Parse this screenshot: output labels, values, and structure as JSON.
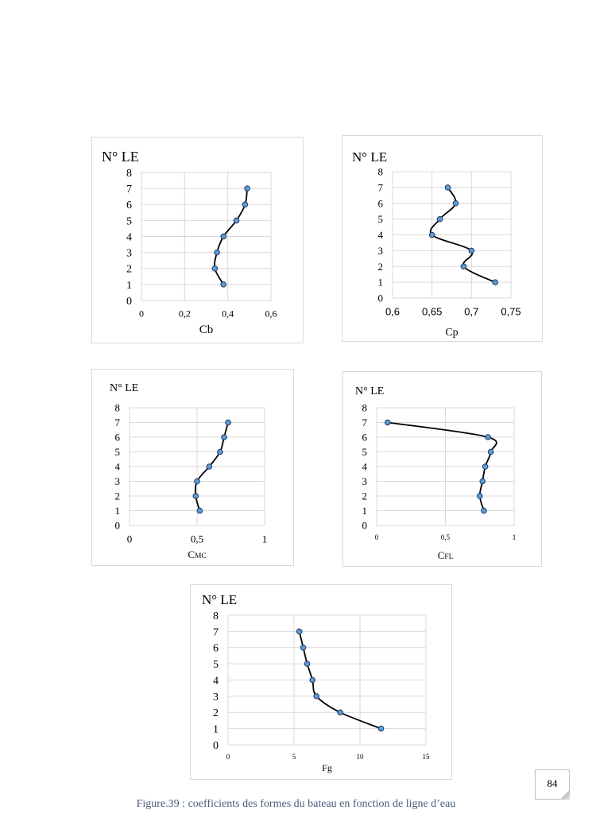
{
  "chart_data": [
    {
      "type": "line",
      "ylabel": "N° LE",
      "xlabel": "Cb",
      "xlim": [
        0,
        0.6
      ],
      "ylim": [
        0,
        8
      ],
      "xticks": [
        "0",
        "0,2",
        "0,4",
        "0,6"
      ],
      "yticks": [
        "0",
        "1",
        "2",
        "3",
        "4",
        "5",
        "6",
        "7",
        "8"
      ],
      "grid": true,
      "series": [
        {
          "x": [
            0.38,
            0.34,
            0.35,
            0.38,
            0.44,
            0.48,
            0.49
          ],
          "y": [
            1,
            2,
            3,
            4,
            5,
            6,
            7
          ]
        }
      ]
    },
    {
      "type": "line",
      "ylabel": "N° LE",
      "xlabel": "Cp",
      "xlim": [
        0.6,
        0.75
      ],
      "ylim": [
        0,
        8
      ],
      "xticks": [
        "0,6",
        "0,65",
        "0,7",
        "0,75"
      ],
      "yticks": [
        "0",
        "1",
        "2",
        "3",
        "4",
        "5",
        "6",
        "7",
        "8"
      ],
      "grid": true,
      "series": [
        {
          "x": [
            0.73,
            0.69,
            0.7,
            0.65,
            0.66,
            0.68,
            0.67
          ],
          "y": [
            1,
            2,
            3,
            4,
            5,
            6,
            7
          ]
        }
      ]
    },
    {
      "type": "line",
      "ylabel": "N° LE",
      "xlabel": "CMC",
      "xlim": [
        0,
        1
      ],
      "ylim": [
        0,
        8
      ],
      "xticks": [
        "0",
        "0,5",
        "1"
      ],
      "yticks": [
        "0",
        "1",
        "2",
        "3",
        "4",
        "5",
        "6",
        "7",
        "8"
      ],
      "grid": true,
      "series": [
        {
          "x": [
            0.52,
            0.49,
            0.5,
            0.59,
            0.67,
            0.7,
            0.73
          ],
          "y": [
            1,
            2,
            3,
            4,
            5,
            6,
            7
          ]
        }
      ]
    },
    {
      "type": "line",
      "ylabel": "N° LE",
      "xlabel": "CFL",
      "xlim": [
        0,
        1
      ],
      "ylim": [
        0,
        8
      ],
      "xticks": [
        "0",
        "0,5",
        "1"
      ],
      "yticks": [
        "0",
        "1",
        "2",
        "3",
        "4",
        "5",
        "6",
        "7",
        "8"
      ],
      "grid": true,
      "series": [
        {
          "x": [
            0.78,
            0.75,
            0.77,
            0.79,
            0.83,
            0.81,
            0.08
          ],
          "y": [
            1,
            2,
            3,
            4,
            5,
            6,
            7
          ]
        }
      ]
    },
    {
      "type": "line",
      "ylabel": "N° LE",
      "xlabel": "Fg",
      "xlim": [
        0,
        15
      ],
      "ylim": [
        0,
        8
      ],
      "xticks": [
        "0",
        "5",
        "10",
        "15"
      ],
      "yticks": [
        "0",
        "1",
        "2",
        "3",
        "4",
        "5",
        "6",
        "7",
        "8"
      ],
      "grid": true,
      "series": [
        {
          "x": [
            11.6,
            8.5,
            6.7,
            6.4,
            6.0,
            5.7,
            5.4
          ],
          "y": [
            1,
            2,
            3,
            4,
            5,
            6,
            7
          ]
        }
      ]
    }
  ],
  "page": {
    "number": "84",
    "caption": "Figure.39 : coefficients des formes du bateau en fonction de ligne d’eau"
  },
  "colors": {
    "marker_fill": "#5b9bd5",
    "marker_stroke": "#1f3864",
    "line": "#000000",
    "grid": "#d9d9d9"
  }
}
